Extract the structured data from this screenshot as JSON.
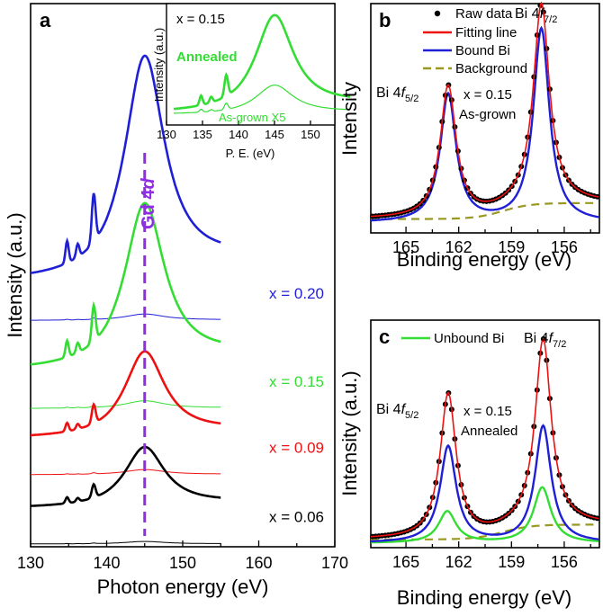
{
  "chart_data": [
    {
      "type": "line",
      "panel": "a",
      "xlabel": "Photon energy (eV)",
      "ylabel": "Intensity (a.u.)",
      "xlim": [
        130,
        170
      ],
      "xticks": [
        "130",
        "140",
        "150",
        "160",
        "170"
      ],
      "peak_marker": {
        "x": 145,
        "label_main": "Gd 4",
        "label_ital": "d",
        "color": "#8e2de2"
      },
      "series": [
        {
          "name": "x = 0.20",
          "color": "#1f1fd6",
          "offset": 4.0,
          "amp": 3.5,
          "thin_amp": 0.1
        },
        {
          "name": "x = 0.15",
          "color": "#33dd33",
          "offset": 2.6,
          "amp": 2.6,
          "thin_amp": 0.12
        },
        {
          "name": "x = 0.09",
          "color": "#ee1111",
          "offset": 1.55,
          "amp": 1.35,
          "thin_amp": 0.08
        },
        {
          "name": "x = 0.06",
          "color": "#000000",
          "offset": 0.45,
          "amp": 0.95,
          "thin_amp": 0.04
        }
      ],
      "inset": {
        "xlabel": "P. E. (eV)",
        "ylabel": "Intensity (a.u.)",
        "xlim": [
          130,
          155
        ],
        "xticks": [
          "130",
          "135",
          "140",
          "145",
          "150"
        ],
        "annotation": "x = 0.15",
        "series": [
          {
            "name": "Annealed",
            "color": "#33dd33",
            "amp": 1.0
          },
          {
            "name": "As-grown X5",
            "color": "#33dd33",
            "amp": 0.3
          }
        ]
      }
    },
    {
      "type": "line",
      "panel": "b",
      "xlabel": "Binding energy (eV)",
      "ylabel": "Intensity",
      "xlim": [
        167,
        154
      ],
      "xticks": [
        "165",
        "162",
        "159",
        "156"
      ],
      "annotation_lines": [
        "x = 0.15",
        "As-grown"
      ],
      "peak_labels": [
        {
          "main": "Bi 4",
          "ital": "f",
          "sub": "5/2",
          "x": 162.6
        },
        {
          "main": "Bi 4",
          "ital": "f",
          "sub": "7/2",
          "x": 157.3
        }
      ],
      "legend": [
        "Raw data",
        "Fitting line",
        "Bound Bi",
        "Background"
      ],
      "peaks": [
        {
          "center": 162.6,
          "height": 0.66
        },
        {
          "center": 157.3,
          "height": 1.0
        }
      ]
    },
    {
      "type": "line",
      "panel": "c",
      "xlabel": "Binding energy (eV)",
      "ylabel": "Intensity (a.u.)",
      "xlim": [
        167,
        154
      ],
      "xticks": [
        "165",
        "162",
        "159",
        "156"
      ],
      "annotation_lines": [
        "x = 0.15",
        "Annealed"
      ],
      "peak_labels": [
        {
          "main": "Bi 4",
          "ital": "f",
          "sub": "5/2",
          "x": 162.6
        },
        {
          "main": "Bi 4",
          "ital": "f",
          "sub": "7/2",
          "x": 157.2
        }
      ],
      "legend": [
        "Unbound Bi"
      ],
      "peaks": [
        {
          "center": 162.6,
          "height": 0.78,
          "bound": 0.52,
          "unbound": 0.17
        },
        {
          "center": 157.2,
          "height": 1.0,
          "bound": 0.63,
          "unbound": 0.3
        }
      ]
    }
  ],
  "colors": {
    "blue": "#1f1fd6",
    "green": "#33dd33",
    "red": "#ee1111",
    "black": "#000000",
    "background": "#999922",
    "purple": "#8e2de2"
  }
}
